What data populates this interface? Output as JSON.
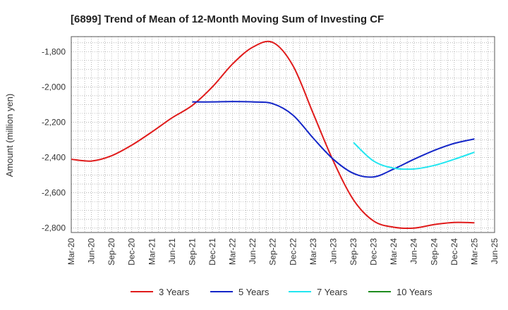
{
  "chart_data": {
    "type": "line",
    "title": "[6899]  Trend of Mean of 12-Month Moving Sum of Investing CF",
    "xlabel": "",
    "ylabel": "Amount (million yen)",
    "ylim": [
      -2825,
      -1715
    ],
    "yticks": [
      -1800,
      -2000,
      -2200,
      -2400,
      -2600,
      -2800
    ],
    "ytick_labels": [
      "-1,800",
      "-2,000",
      "-2,200",
      "-2,400",
      "-2,600",
      "-2,800"
    ],
    "categories": [
      "Mar-20",
      "Jun-20",
      "Sep-20",
      "Dec-20",
      "Mar-21",
      "Jun-21",
      "Sep-21",
      "Dec-21",
      "Mar-22",
      "Jun-22",
      "Sep-22",
      "Dec-22",
      "Mar-23",
      "Jun-23",
      "Sep-23",
      "Dec-23",
      "Mar-24",
      "Jun-24",
      "Sep-24",
      "Dec-24",
      "Mar-25",
      "Jun-25"
    ],
    "grid": true,
    "legend_position": "bottom",
    "series": [
      {
        "name": "3 Years",
        "color": "#e01b1b",
        "values": [
          -2410,
          -2420,
          -2390,
          -2330,
          -2255,
          -2175,
          -2105,
          -2000,
          -1870,
          -1775,
          -1748,
          -1880,
          -2150,
          -2420,
          -2640,
          -2760,
          -2795,
          -2800,
          -2780,
          -2768,
          -2770,
          null
        ]
      },
      {
        "name": "5 Years",
        "color": "#1426c8",
        "values": [
          null,
          null,
          null,
          null,
          null,
          null,
          -2085,
          -2085,
          -2083,
          -2085,
          -2095,
          -2160,
          -2290,
          -2410,
          -2490,
          -2510,
          -2465,
          -2410,
          -2360,
          -2320,
          -2295,
          null
        ]
      },
      {
        "name": "7 Years",
        "color": "#22e6f0",
        "values": [
          null,
          null,
          null,
          null,
          null,
          null,
          null,
          null,
          null,
          null,
          null,
          null,
          null,
          null,
          -2315,
          -2420,
          -2460,
          -2465,
          -2445,
          -2410,
          -2370,
          null
        ]
      },
      {
        "name": "10 Years",
        "color": "#1e8c1e",
        "values": [
          null,
          null,
          null,
          null,
          null,
          null,
          null,
          null,
          null,
          null,
          null,
          null,
          null,
          null,
          null,
          null,
          null,
          null,
          null,
          null,
          null,
          null
        ]
      }
    ]
  }
}
